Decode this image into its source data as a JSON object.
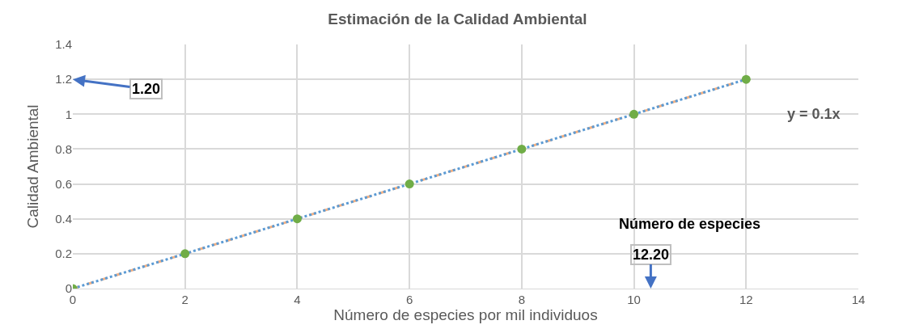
{
  "chart_data": {
    "type": "line",
    "title": "Estimación de la Calidad Ambiental",
    "xlabel": "Número de especies por mil individuos",
    "ylabel": "Calidad Ambiental",
    "x": [
      0,
      2,
      4,
      6,
      8,
      10,
      12
    ],
    "series": [
      {
        "color": "#f4b183",
        "x": [
          0,
          12
        ],
        "values": [
          0,
          1.2
        ],
        "line_style": "dashed"
      },
      {
        "color": "#5b9bd5",
        "values": [
          0,
          0.2,
          0.4,
          0.6,
          0.8,
          1.0,
          1.2
        ],
        "line_style": "dotted"
      },
      {
        "type": "scatter",
        "color": "#70ad47",
        "values": [
          0,
          0.2,
          0.4,
          0.6,
          0.8,
          1.0,
          1.2
        ],
        "marker": "circle"
      }
    ],
    "xlim": [
      0,
      14
    ],
    "xticks": [
      0,
      2,
      4,
      6,
      8,
      10,
      12,
      14
    ],
    "ylim": [
      0,
      1.4
    ],
    "yticks": [
      0,
      0.2,
      0.4,
      0.6,
      0.8,
      1,
      1.2,
      1.4
    ],
    "annotations": [
      "1.20",
      "12.20",
      "Número de especies",
      "y = 0.1x"
    ],
    "grid": true,
    "legend": false
  }
}
